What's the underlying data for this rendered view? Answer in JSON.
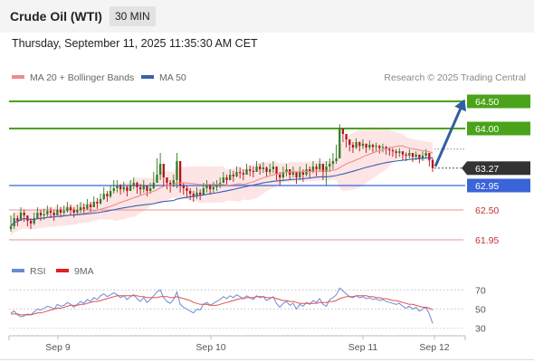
{
  "header": {
    "title": "Crude Oil (WTI)",
    "timeframe": "30 MIN",
    "datetime": "Thursday, September 11, 2025 11:35:30 AM CET"
  },
  "legend": {
    "ma20": "MA 20 + Bollinger Bands",
    "ma50": "MA 50",
    "rsi": "RSI",
    "rsi_ma": "9MA"
  },
  "credit": "Research © 2025 Trading Central",
  "colors": {
    "up_candle": "#2e7d1e",
    "down_candle": "#b3121d",
    "ma20": "#f08a8a",
    "ma50": "#3a5fb0",
    "bollinger_fill": "#fde0e0",
    "resistance": "#4aa31a",
    "support": "#e07070",
    "pivot": "#3a64d8",
    "current": "#333333",
    "arrow": "#2f5fa0",
    "rsi_line": "#6a8ad8",
    "rsi_ma_line": "#e05050"
  },
  "chart_data": [
    {
      "type": "candlestick",
      "ylim": [
        61.7,
        64.75
      ],
      "x_tick_labels": [
        "Sep 9",
        "Sep 10",
        "Sep 11",
        "Sep 12"
      ],
      "levels": [
        {
          "name": "resistance-2",
          "value": 64.5,
          "label": "64.50",
          "kind": "resistance"
        },
        {
          "name": "resistance-1",
          "value": 64.0,
          "label": "64.00",
          "kind": "resistance"
        },
        {
          "name": "current-price",
          "value": 63.27,
          "label": "63.27",
          "kind": "current"
        },
        {
          "name": "pivot",
          "value": 62.95,
          "label": "62.95",
          "kind": "pivot"
        },
        {
          "name": "support-1",
          "value": 62.5,
          "label": "62.50",
          "kind": "support"
        },
        {
          "name": "support-2",
          "value": 61.95,
          "label": "61.95",
          "kind": "support"
        }
      ],
      "closes": [
        62.2,
        62.35,
        62.3,
        62.45,
        62.4,
        62.3,
        62.25,
        62.35,
        62.45,
        62.4,
        62.42,
        62.48,
        62.45,
        62.4,
        62.5,
        62.45,
        62.48,
        62.55,
        62.5,
        62.45,
        62.5,
        62.55,
        62.52,
        62.6,
        62.55,
        62.65,
        62.62,
        62.7,
        62.8,
        62.75,
        62.85,
        62.9,
        62.95,
        62.88,
        62.92,
        62.85,
        62.95,
        63.0,
        62.92,
        62.88,
        62.95,
        62.85,
        62.9,
        63.0,
        63.15,
        63.35,
        63.1,
        63.0,
        62.95,
        63.05,
        63.4,
        62.95,
        62.9,
        62.85,
        62.8,
        62.75,
        62.82,
        62.78,
        62.9,
        62.95,
        62.88,
        62.92,
        62.95,
        63.0,
        63.1,
        63.05,
        63.15,
        63.12,
        63.2,
        63.18,
        63.15,
        63.25,
        63.22,
        63.2,
        63.3,
        63.25,
        63.28,
        63.2,
        63.25,
        63.3,
        63.15,
        63.1,
        63.2,
        63.25,
        63.15,
        63.2,
        63.1,
        63.2,
        63.15,
        63.25,
        63.2,
        63.3,
        63.25,
        63.35,
        63.2,
        63.3,
        63.35,
        63.4,
        63.45,
        64.0,
        63.9,
        63.8,
        63.7,
        63.65,
        63.75,
        63.68,
        63.72,
        63.65,
        63.7,
        63.66,
        63.68,
        63.64,
        63.66,
        63.62,
        63.6,
        63.58,
        63.55,
        63.58,
        63.52,
        63.5,
        63.55,
        63.48,
        63.52,
        63.45,
        63.5,
        63.55,
        63.42,
        63.27
      ],
      "highs": [
        62.4,
        62.45,
        62.4,
        62.55,
        62.5,
        62.4,
        62.35,
        62.45,
        62.55,
        62.5,
        62.52,
        62.58,
        62.55,
        62.5,
        62.6,
        62.55,
        62.58,
        62.65,
        62.6,
        62.55,
        62.6,
        62.65,
        62.62,
        62.7,
        62.65,
        62.75,
        62.72,
        62.8,
        62.92,
        62.85,
        62.95,
        63.05,
        63.05,
        62.98,
        63.02,
        62.95,
        63.05,
        63.1,
        63.02,
        62.98,
        63.05,
        62.95,
        63.0,
        63.2,
        63.45,
        63.55,
        63.2,
        63.1,
        63.05,
        63.15,
        63.55,
        63.05,
        63.0,
        62.95,
        62.9,
        62.85,
        62.92,
        62.88,
        63.0,
        63.05,
        62.98,
        63.02,
        63.05,
        63.1,
        63.2,
        63.15,
        63.25,
        63.22,
        63.3,
        63.28,
        63.25,
        63.35,
        63.32,
        63.3,
        63.4,
        63.35,
        63.38,
        63.3,
        63.35,
        63.4,
        63.25,
        63.2,
        63.3,
        63.35,
        63.25,
        63.3,
        63.2,
        63.3,
        63.25,
        63.35,
        63.3,
        63.4,
        63.35,
        63.45,
        63.3,
        63.4,
        63.45,
        63.55,
        63.7,
        64.08,
        64.0,
        63.9,
        63.8,
        63.75,
        63.82,
        63.76,
        63.8,
        63.72,
        63.78,
        63.72,
        63.74,
        63.7,
        63.72,
        63.68,
        63.66,
        63.64,
        63.62,
        63.64,
        63.58,
        63.56,
        63.62,
        63.55,
        63.58,
        63.52,
        63.58,
        63.62,
        63.55,
        63.45
      ],
      "lows": [
        62.1,
        62.15,
        62.2,
        62.3,
        62.28,
        62.2,
        62.15,
        62.22,
        62.35,
        62.3,
        62.32,
        62.38,
        62.35,
        62.3,
        62.4,
        62.36,
        62.38,
        62.45,
        62.4,
        62.36,
        62.4,
        62.45,
        62.42,
        62.5,
        62.45,
        62.55,
        62.52,
        62.6,
        62.68,
        62.65,
        62.72,
        62.8,
        62.82,
        62.78,
        62.82,
        62.75,
        62.85,
        62.88,
        62.8,
        62.78,
        62.82,
        62.75,
        62.8,
        62.88,
        63.0,
        63.05,
        62.95,
        62.88,
        62.82,
        62.92,
        62.9,
        62.82,
        62.78,
        62.72,
        62.68,
        62.65,
        62.7,
        62.68,
        62.8,
        62.82,
        62.78,
        62.82,
        62.85,
        62.9,
        63.0,
        62.95,
        63.05,
        63.02,
        63.1,
        63.08,
        63.05,
        63.15,
        63.12,
        63.1,
        63.2,
        63.15,
        63.18,
        63.1,
        63.15,
        63.18,
        63.05,
        62.95,
        63.05,
        63.12,
        63.05,
        63.1,
        62.98,
        63.05,
        63.02,
        63.12,
        63.08,
        63.18,
        63.12,
        63.2,
        63.05,
        62.95,
        63.2,
        63.25,
        63.35,
        63.8,
        63.75,
        63.65,
        63.58,
        63.55,
        63.62,
        63.58,
        63.62,
        63.55,
        63.6,
        63.56,
        63.58,
        63.54,
        63.56,
        63.52,
        63.5,
        63.48,
        63.45,
        63.48,
        63.42,
        63.4,
        63.45,
        63.38,
        63.42,
        63.36,
        63.4,
        63.45,
        63.3,
        63.2
      ]
    },
    {
      "type": "line",
      "name": "RSI",
      "ylim": [
        25,
        78
      ],
      "y_ticks": [
        30,
        50,
        70
      ],
      "rsi_values": [
        46,
        48,
        44,
        42,
        43,
        45,
        44,
        47,
        50,
        49,
        51,
        53,
        52,
        50,
        55,
        53,
        54,
        57,
        55,
        52,
        55,
        58,
        56,
        60,
        58,
        62,
        60,
        64,
        66,
        63,
        65,
        67,
        65,
        62,
        64,
        60,
        63,
        65,
        61,
        58,
        62,
        57,
        60,
        64,
        68,
        70,
        62,
        58,
        56,
        60,
        68,
        55,
        52,
        50,
        48,
        46,
        50,
        49,
        55,
        57,
        54,
        56,
        58,
        60,
        63,
        61,
        64,
        62,
        65,
        63,
        61,
        64,
        62,
        60,
        64,
        62,
        63,
        59,
        61,
        63,
        56,
        52,
        56,
        58,
        54,
        56,
        50,
        55,
        53,
        57,
        55,
        59,
        57,
        61,
        55,
        53,
        60,
        62,
        65,
        72,
        69,
        66,
        63,
        62,
        64,
        62,
        63,
        61,
        62,
        60,
        61,
        59,
        60,
        58,
        57,
        56,
        55,
        56,
        53,
        51,
        53,
        50,
        52,
        48,
        50,
        52,
        45,
        35
      ],
      "ma_values": [
        45,
        45,
        45,
        44,
        44,
        44,
        44,
        45,
        46,
        46,
        47,
        48,
        49,
        50,
        51,
        51,
        52,
        53,
        54,
        54,
        54,
        55,
        55,
        56,
        57,
        58,
        58,
        59,
        60,
        61,
        62,
        63,
        64,
        64,
        64,
        64,
        64,
        64,
        64,
        63,
        63,
        62,
        62,
        62,
        62,
        63,
        63,
        63,
        62,
        62,
        63,
        62,
        61,
        60,
        59,
        57,
        56,
        55,
        55,
        55,
        54,
        54,
        54,
        55,
        56,
        57,
        58,
        59,
        60,
        61,
        61,
        62,
        62,
        62,
        63,
        63,
        63,
        62,
        62,
        62,
        61,
        60,
        59,
        59,
        58,
        58,
        57,
        56,
        56,
        56,
        56,
        56,
        56,
        57,
        57,
        57,
        58,
        58,
        59,
        61,
        62,
        63,
        63,
        63,
        64,
        64,
        64,
        64,
        63,
        63,
        62,
        62,
        61,
        61,
        60,
        59,
        59,
        58,
        57,
        56,
        55,
        55,
        54,
        53,
        52,
        52,
        51,
        49
      ]
    }
  ]
}
